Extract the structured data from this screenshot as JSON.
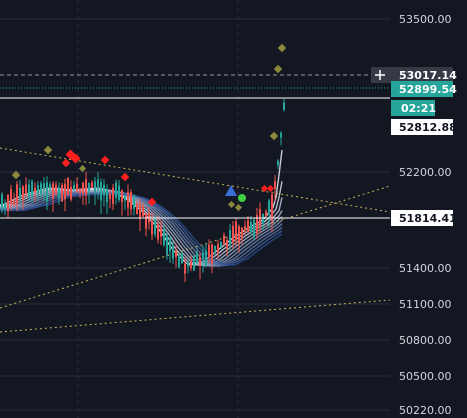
{
  "price_axis": {
    "ticks": [
      "53500.00",
      "52200.00",
      "51400.00",
      "51100.00",
      "50800.00",
      "50500.00",
      "50220.00"
    ]
  },
  "price_tags": {
    "crosshair": {
      "label": "53017.14",
      "bg": "#363a45",
      "fg": "#ffffff",
      "icon": "crosshair-plus-icon"
    },
    "last_price": {
      "label": "52899.54",
      "bg": "#26a69a",
      "fg": "#ffffff"
    },
    "countdown": {
      "label": "02:21",
      "bg": "#26a69a",
      "fg": "#ffffff"
    },
    "horizontal_line_1": {
      "label": "52812.88",
      "bg": "#ffffff",
      "fg": "#131722"
    },
    "horizontal_line_2": {
      "label": "51814.41",
      "bg": "#ffffff",
      "fg": "#131722"
    }
  },
  "colors": {
    "background": "#131722",
    "grid": "#2a2e39",
    "candle_up": "#26a69a",
    "candle_down": "#ef5350",
    "trendline": "#c9b458",
    "ribbon_light": "#e8ecf7",
    "ribbon_dark": "#2b4f8f",
    "marker_red": "#ff1f1f",
    "marker_olive": "#8a8a3a",
    "marker_green": "#3fd13f",
    "marker_blue": "#3b6fd8"
  }
}
